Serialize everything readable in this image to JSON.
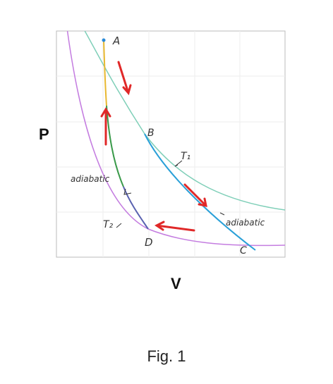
{
  "axes": {
    "y_label": "P",
    "x_label": "V"
  },
  "points": [
    "A",
    "B",
    "C",
    "D"
  ],
  "curve_labels": {
    "t1": "T₁",
    "t2": "T₂",
    "adiabatic_left": "adiabatic",
    "adiabatic_right": "adiabatic"
  },
  "caption": "Fig. 1"
}
